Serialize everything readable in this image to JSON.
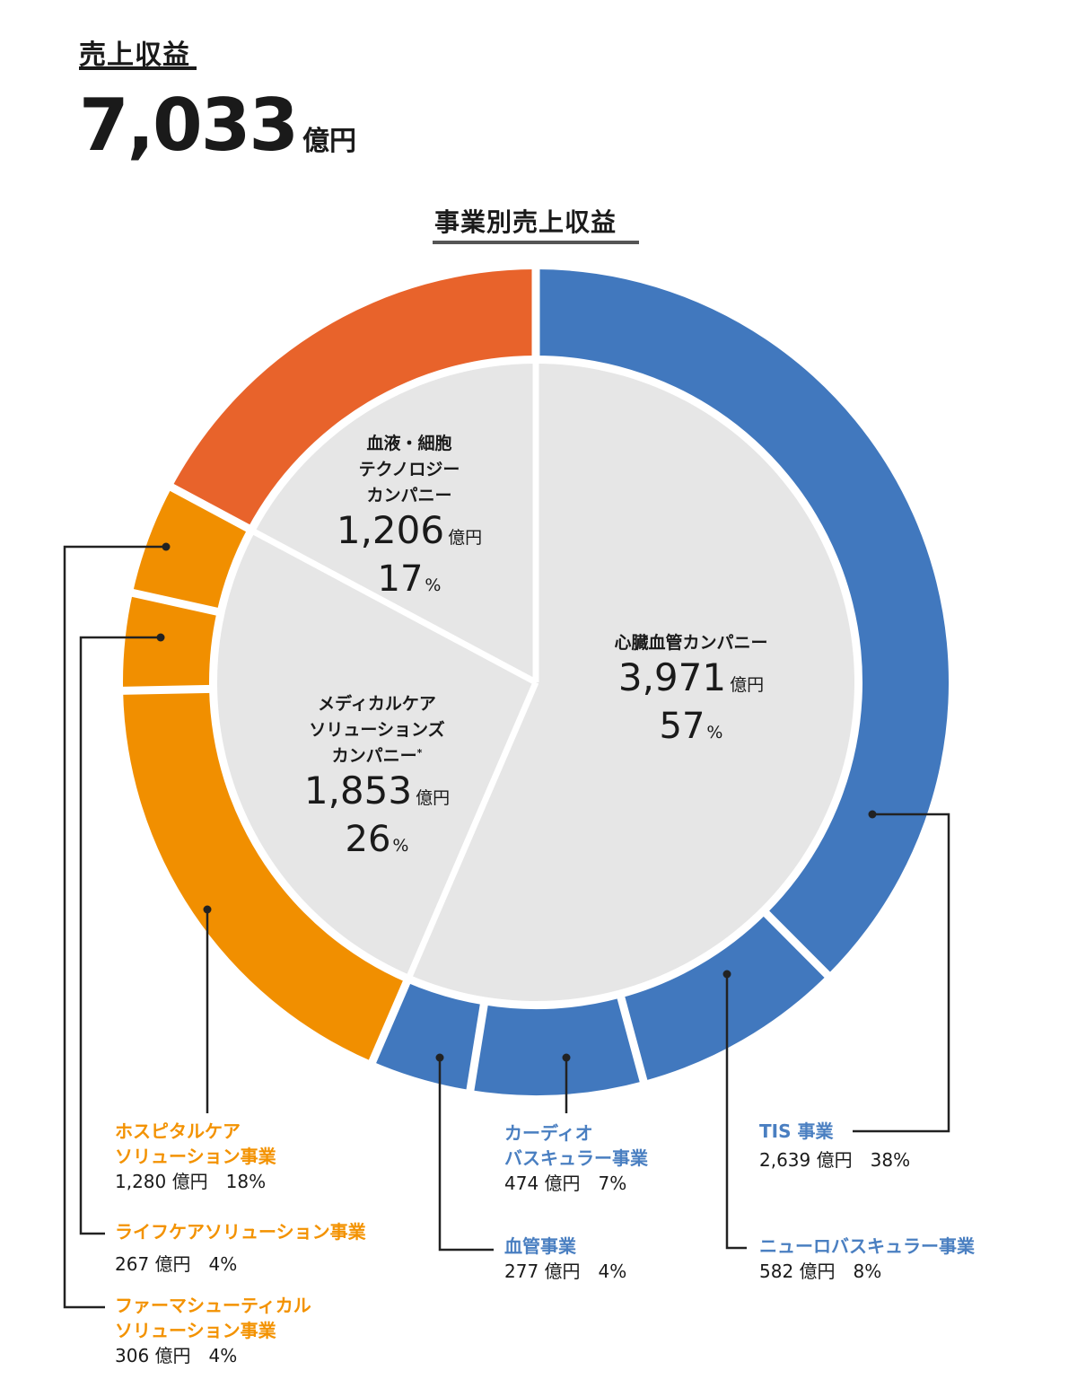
{
  "header": {
    "kpi_label": "売上収益",
    "kpi_value": "7,033",
    "kpi_unit": "億円"
  },
  "chart": {
    "title": "事業別売上収益",
    "unit": "億円",
    "pct_unit": "%"
  },
  "colors": {
    "cardiovascular": "#4178be",
    "blood_cell": "#e8632b",
    "medical_care": "#f18f00",
    "inner_fill": "#e6e6e6",
    "separator": "#ffffff",
    "leader_line": "#222222"
  },
  "companies": [
    {
      "id": "cardiovascular",
      "name_lines": [
        "心臓血管カンパニー"
      ],
      "amount": "3,971",
      "pct": "57",
      "asterisk": ""
    },
    {
      "id": "medical_care",
      "name_lines": [
        "メディカルケア",
        "ソリューションズ",
        "カンパニー"
      ],
      "amount": "1,853",
      "pct": "26",
      "asterisk": "*"
    },
    {
      "id": "blood_cell",
      "name_lines": [
        "血液・細胞",
        "テクノロジー",
        "カンパニー"
      ],
      "amount": "1,206",
      "pct": "17",
      "asterisk": ""
    }
  ],
  "segments": [
    {
      "id": "tis",
      "company": "cardiovascular",
      "name_lines": [
        "TIS 事業"
      ],
      "amount": "2,639",
      "pct": "38%"
    },
    {
      "id": "neurovascular",
      "company": "cardiovascular",
      "name_lines": [
        "ニューロバスキュラー事業"
      ],
      "amount": "582",
      "pct": "8%"
    },
    {
      "id": "cardio_vascular",
      "company": "cardiovascular",
      "name_lines": [
        "カーディオ",
        "バスキュラー事業"
      ],
      "amount": "474",
      "pct": "7%"
    },
    {
      "id": "vascular",
      "company": "cardiovascular",
      "name_lines": [
        "血管事業"
      ],
      "amount": "277",
      "pct": "4%"
    },
    {
      "id": "hospital_care",
      "company": "medical_care",
      "name_lines": [
        "ホスピタルケア",
        "ソリューション事業"
      ],
      "amount": "1,280",
      "pct": "18%"
    },
    {
      "id": "life_care",
      "company": "medical_care",
      "name_lines": [
        "ライフケアソリューション事業"
      ],
      "amount": "267",
      "pct": "4%"
    },
    {
      "id": "pharma",
      "company": "medical_care",
      "name_lines": [
        "ファーマシューティカル",
        "ソリューション事業"
      ],
      "amount": "306",
      "pct": "4%"
    },
    {
      "id": "blood_cell_ring",
      "company": "blood_cell",
      "name_lines": [],
      "amount": "1,206",
      "pct": "17%"
    }
  ],
  "chart_data": {
    "type": "pie",
    "title": "事業別売上収益",
    "subtitle": "売上収益 7,033 億円",
    "unit": "億円",
    "inner": {
      "categories": [
        "心臓血管カンパニー",
        "メディカルケアソリューションズカンパニー*",
        "血液・細胞テクノロジーカンパニー"
      ],
      "values": [
        3971,
        1853,
        1206
      ],
      "percent": [
        57,
        26,
        17
      ]
    },
    "outer": {
      "categories": [
        "TIS 事業",
        "ニューロバスキュラー事業",
        "カーディオバスキュラー事業",
        "血管事業",
        "ホスピタルケアソリューション事業",
        "ライフケアソリューション事業",
        "ファーマシューティカルソリューション事業",
        "血液・細胞テクノロジーカンパニー"
      ],
      "values": [
        2639,
        582,
        474,
        277,
        1280,
        267,
        306,
        1206
      ],
      "percent": [
        38,
        8,
        7,
        4,
        18,
        4,
        4,
        17
      ]
    },
    "total": 7033
  }
}
